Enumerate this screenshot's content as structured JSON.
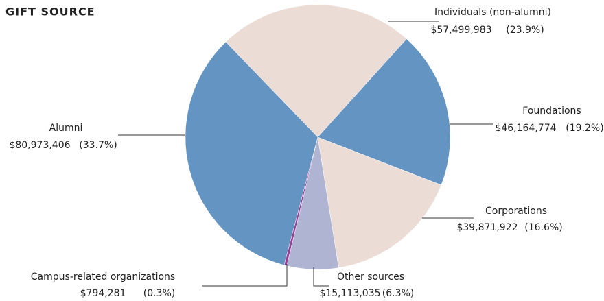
{
  "chart_data": {
    "type": "pie",
    "title": "GIFT SOURCE",
    "categories": [
      "Individuals (non-alumni)",
      "Foundations",
      "Corporations",
      "Other sources",
      "Campus-related organizations",
      "Alumni"
    ],
    "values": [
      57499983,
      46164774,
      39871922,
      15113035,
      794281,
      80973406
    ],
    "value_labels": [
      "$57,499,983",
      "$46,164,774",
      "$39,871,922",
      "$15,113,035",
      "$794,281",
      "$80,973,406"
    ],
    "percentages": [
      23.9,
      19.2,
      16.6,
      6.3,
      0.3,
      33.7
    ],
    "percentage_labels": [
      "(23.9%)",
      "(19.2%)",
      "(16.6%)",
      "(6.3%)",
      "(0.3%)",
      "(33.7%)"
    ],
    "colors": [
      "#ecdcd6",
      "#6394c2",
      "#ecdcd6",
      "#b0b4d3",
      "#9b3e97",
      "#6394c2"
    ]
  }
}
